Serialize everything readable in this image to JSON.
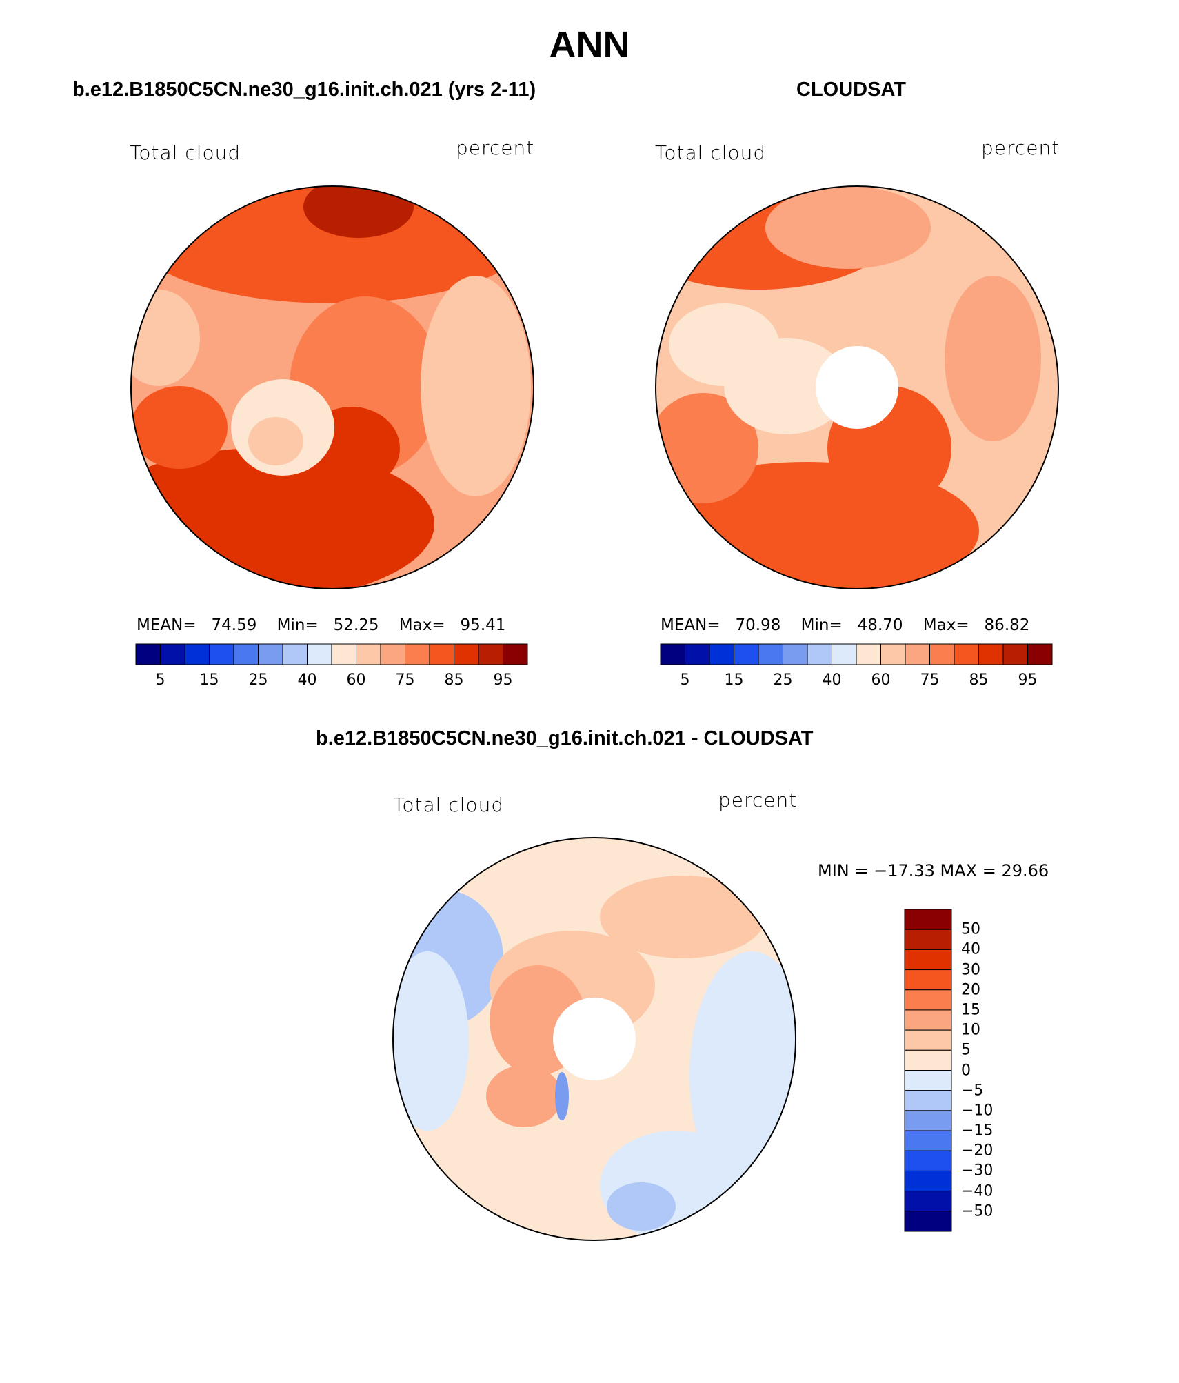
{
  "title": "ANN",
  "panels": [
    {
      "id": "model",
      "title": "b.e12.B1850C5CN.ne30_g16.init.ch.021 (yrs 2-11)",
      "left_label": "Total cloud",
      "right_label": "percent",
      "stats": {
        "mean_label": "MEAN=",
        "mean": "74.59",
        "min_label": "Min=",
        "min": "52.25",
        "max_label": "Max=",
        "max": "95.41"
      }
    },
    {
      "id": "obs",
      "title": "CLOUDSAT",
      "left_label": "Total cloud",
      "right_label": "percent",
      "stats": {
        "mean_label": "MEAN=",
        "mean": "70.98",
        "min_label": "Min=",
        "min": "48.70",
        "max_label": "Max=",
        "max": "86.82"
      }
    },
    {
      "id": "diff",
      "title": "b.e12.B1850C5CN.ne30_g16.init.ch.021 - CLOUDSAT",
      "left_label": "Total cloud",
      "right_label": "percent",
      "minmax": "MIN = −17.33 MAX =   29.66"
    }
  ],
  "abs_colorbar": {
    "colors": [
      "#000080",
      "#0010a8",
      "#0030d8",
      "#1e50f0",
      "#4a78f0",
      "#7a9cf0",
      "#b0c8f8",
      "#ddeafc",
      "#fde6d2",
      "#fcc8a8",
      "#fba680",
      "#fb7e4e",
      "#f5551e",
      "#e03200",
      "#b81e00",
      "#8a0000"
    ],
    "tick_labels": [
      "5",
      "15",
      "25",
      "40",
      "60",
      "75",
      "85",
      "95"
    ]
  },
  "diff_colorbar": {
    "colors": [
      "#000080",
      "#0010a8",
      "#0030d8",
      "#1e50f0",
      "#4a78f0",
      "#7a9cf0",
      "#b0c8f8",
      "#ddeafc",
      "#fde6d2",
      "#fcc8a8",
      "#fba680",
      "#fb7e4e",
      "#f5551e",
      "#e03200",
      "#b81e00",
      "#8a0000"
    ],
    "tick_labels": [
      "50",
      "40",
      "30",
      "20",
      "15",
      "10",
      "5",
      "0",
      "−5",
      "−10",
      "−15",
      "−20",
      "−30",
      "−40",
      "−50"
    ]
  },
  "map_colors": {
    "coast": "#000000",
    "model": {
      "ocean_a": "#f5551e",
      "ocean_b": "#fb7e4e",
      "mid": "#fba680",
      "light": "#fcc8a8",
      "pale": "#fde6d2",
      "dark": "#e03200",
      "darkest": "#b81e00"
    },
    "obs": {
      "ocean_a": "#f5551e",
      "mid": "#fba680",
      "light": "#fcc8a8",
      "pale": "#fde6d2",
      "dark": "#fb7e4e"
    },
    "diff": {
      "base": "#fde6d2",
      "pos": "#fcc8a8",
      "pos2": "#fba680",
      "pos3": "#fb7e4e",
      "neg": "#ddeafc",
      "neg2": "#b0c8f8",
      "neg3": "#7a9cf0"
    }
  }
}
